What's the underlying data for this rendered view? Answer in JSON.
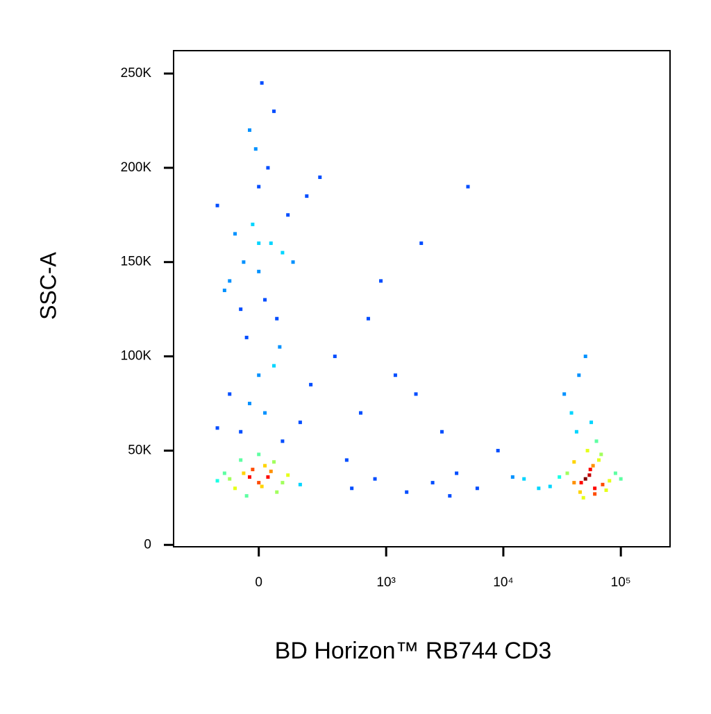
{
  "chart_data": {
    "type": "scatter",
    "xlabel": "BD Horizon™ RB744 CD3",
    "ylabel": "SSC-A",
    "xscale": "biexponential",
    "colormap": "jet",
    "xlim": [
      -425,
      262144
    ],
    "ylim": [
      -1000,
      262144
    ],
    "xticks": [
      0,
      {
        "value": 1000,
        "label": "10³"
      },
      {
        "value": 10000,
        "label": "10⁴"
      },
      {
        "value": 100000,
        "label": "10⁵"
      }
    ],
    "yticks": [
      0,
      {
        "value": 50000,
        "label": "50K"
      },
      {
        "value": 100000,
        "label": "100K"
      },
      {
        "value": 150000,
        "label": "150K"
      },
      {
        "value": 200000,
        "label": "200K"
      },
      {
        "value": 250000,
        "label": "250K"
      }
    ],
    "x": [
      -100,
      -50,
      0,
      30,
      -80,
      20,
      -20,
      60,
      -150,
      100,
      -60,
      10,
      -30,
      40,
      80,
      -120,
      0,
      -40,
      50,
      150,
      -60,
      20,
      -100,
      80,
      0,
      150,
      -30,
      50,
      200,
      -150,
      -50,
      0,
      40,
      -100,
      80,
      -20,
      20,
      120,
      -150,
      60,
      -80,
      0,
      30,
      -40,
      100,
      -10,
      50,
      -120,
      10,
      180,
      -60,
      0,
      250,
      -30,
      70,
      500,
      800,
      1500,
      2500,
      4000,
      6000,
      700,
      1200,
      3000,
      9000,
      15000,
      2000,
      600,
      350,
      450,
      5000,
      1800,
      3500,
      900,
      12000,
      40000,
      50000,
      60000,
      35000,
      70000,
      45000,
      55000,
      30000,
      80000,
      65000,
      48000,
      52000,
      25000,
      90000,
      42000,
      58000,
      38000,
      75000,
      62000,
      46000,
      54000,
      33000,
      68000,
      100000,
      20000,
      44000,
      56000,
      50000,
      60000,
      40000
    ],
    "values": [
      35000,
      38000,
      33000,
      36000,
      30000,
      42000,
      40000,
      28000,
      34000,
      37000,
      45000,
      31000,
      36000,
      39000,
      33000,
      38000,
      48000,
      26000,
      44000,
      32000,
      60000,
      70000,
      80000,
      55000,
      90000,
      65000,
      75000,
      95000,
      85000,
      62000,
      150000,
      145000,
      160000,
      140000,
      155000,
      170000,
      130000,
      150000,
      180000,
      120000,
      165000,
      190000,
      200000,
      110000,
      175000,
      210000,
      230000,
      135000,
      245000,
      185000,
      125000,
      160000,
      195000,
      220000,
      105000,
      30000,
      35000,
      28000,
      33000,
      38000,
      30000,
      120000,
      90000,
      60000,
      50000,
      35000,
      160000,
      70000,
      100000,
      45000,
      190000,
      80000,
      26000,
      140000,
      36000,
      33000,
      35000,
      30000,
      38000,
      32000,
      28000,
      40000,
      36000,
      34000,
      45000,
      25000,
      50000,
      31000,
      38000,
      60000,
      42000,
      70000,
      29000,
      55000,
      33000,
      37000,
      80000,
      48000,
      35000,
      30000,
      90000,
      65000,
      100000,
      27000,
      44000
    ]
  }
}
